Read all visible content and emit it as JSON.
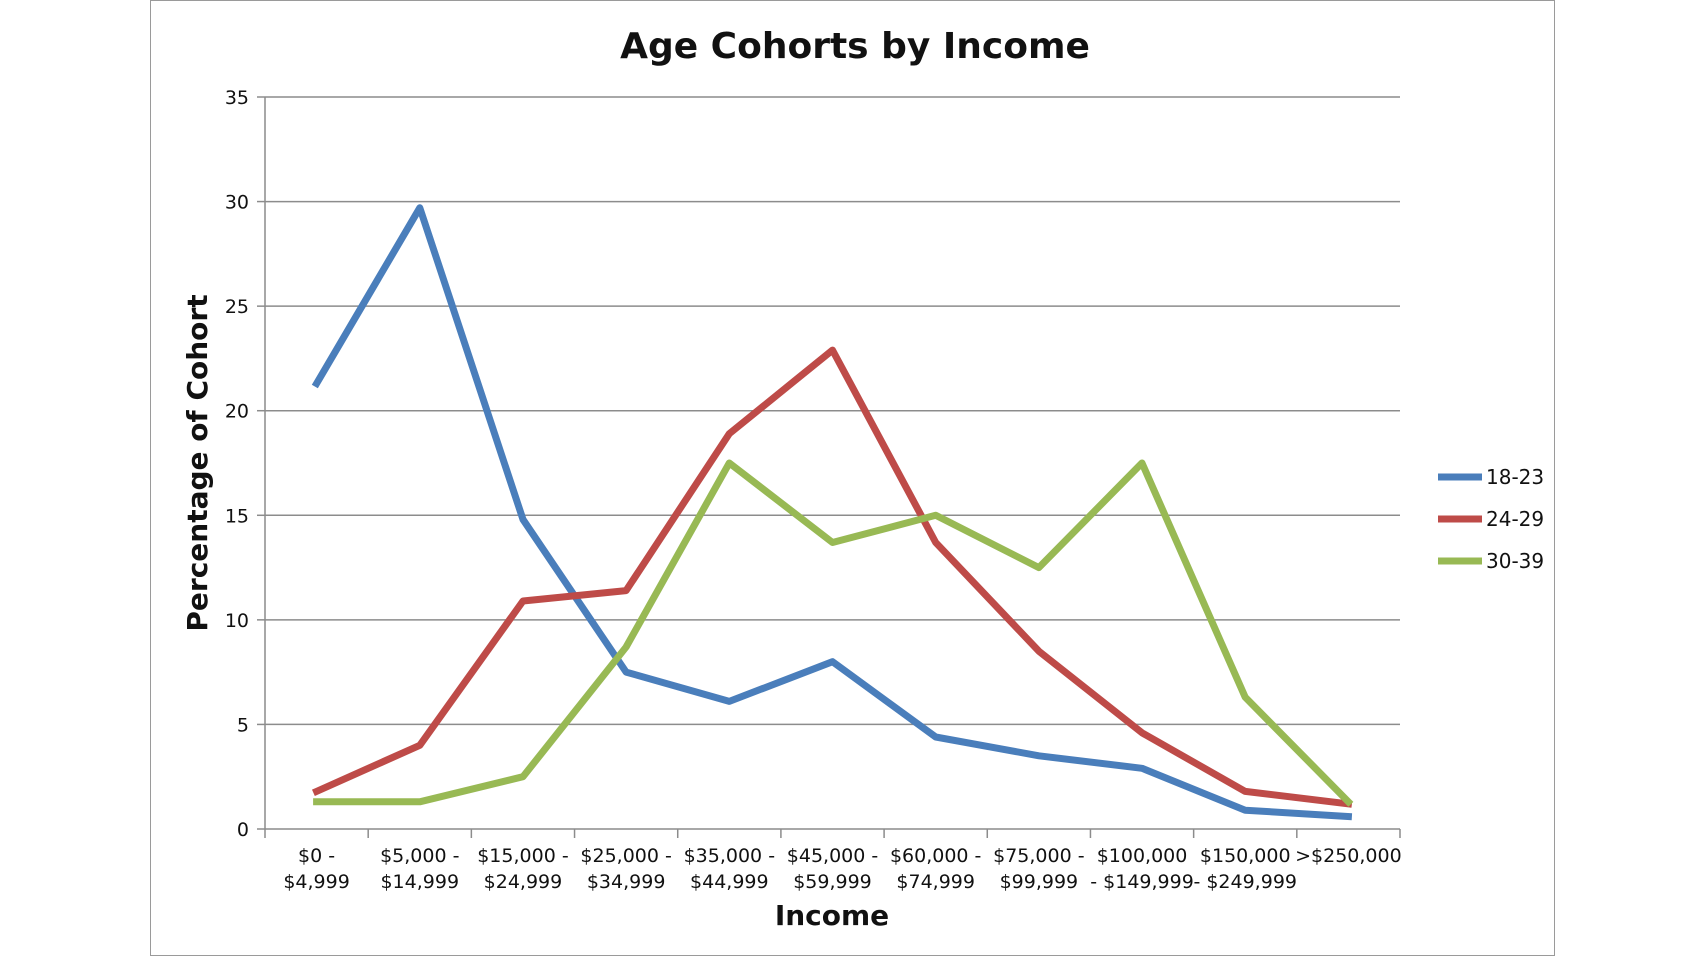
{
  "chart_data": {
    "type": "line",
    "title": "Age Cohorts by Income",
    "xlabel": "Income",
    "ylabel": "Percentage of Cohort",
    "ylim": [
      0,
      35
    ],
    "yticks": [
      0,
      5,
      10,
      15,
      20,
      25,
      30,
      35
    ],
    "grid": true,
    "legend_position": "right",
    "categories": [
      [
        "$0 -",
        "$4,999"
      ],
      [
        "$5,000 -",
        "$14,999"
      ],
      [
        "$15,000 -",
        "$24,999"
      ],
      [
        "$25,000 -",
        "$34,999"
      ],
      [
        "$35,000 -",
        "$44,999"
      ],
      [
        "$45,000 -",
        "$59,999"
      ],
      [
        "$60,000 -",
        "$74,999"
      ],
      [
        "$75,000 -",
        "$99,999"
      ],
      [
        "$100,000",
        "- $149,999"
      ],
      [
        "$150,000",
        "- $249,999"
      ],
      [
        ">$250,000",
        ""
      ]
    ],
    "series": [
      {
        "name": "18-23",
        "color": "#4a7ebb",
        "values": [
          21.3,
          29.7,
          14.8,
          7.5,
          6.1,
          8.0,
          4.4,
          3.5,
          2.9,
          0.9,
          0.6
        ]
      },
      {
        "name": "24-29",
        "color": "#be4b48",
        "values": [
          1.8,
          4.0,
          10.9,
          11.4,
          18.9,
          22.9,
          13.7,
          8.5,
          4.6,
          1.8,
          1.2
        ]
      },
      {
        "name": "30-39",
        "color": "#98b954",
        "values": [
          1.3,
          1.3,
          2.5,
          8.7,
          17.5,
          13.7,
          15.0,
          12.5,
          17.5,
          6.3,
          1.3
        ]
      }
    ]
  }
}
